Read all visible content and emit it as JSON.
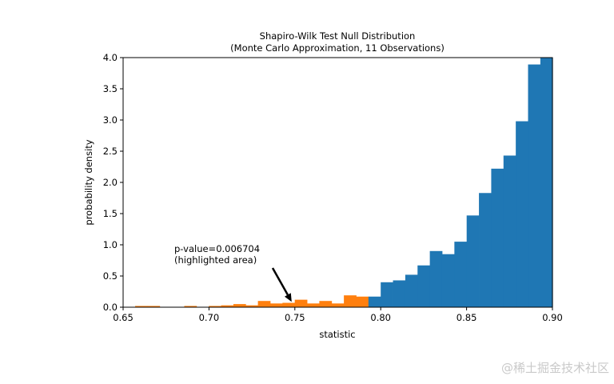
{
  "chart_data": {
    "type": "bar",
    "title": "Shapiro-Wilk Test Null Distribution",
    "subtitle": "(Monte Carlo Approximation, 11 Observations)",
    "xlabel": "statistic",
    "ylabel": "probability density",
    "xlim": [
      0.65,
      0.9
    ],
    "ylim": [
      0,
      4.0
    ],
    "xticks": [
      "0.65",
      "0.70",
      "0.75",
      "0.80",
      "0.85",
      "0.90"
    ],
    "yticks": [
      "0.0",
      "0.5",
      "1.0",
      "1.5",
      "2.0",
      "2.5",
      "3.0",
      "3.5",
      "4.0"
    ],
    "grid": false,
    "bin_start": 0.657,
    "bin_width": 0.00715,
    "highlighted_values": [
      0.02,
      0.02,
      0,
      0,
      0.02,
      0,
      0.02,
      0.03,
      0.05,
      0.03,
      0.1,
      0.06,
      0.07,
      0.12,
      0.06,
      0.1,
      0.06,
      0.19,
      0.17
    ],
    "other_values": [
      0.17,
      0.4,
      0.43,
      0.52,
      0.67,
      0.9,
      0.85,
      1.05,
      1.47,
      1.83,
      2.22,
      2.43,
      2.98,
      3.89,
      4.2
    ],
    "colors": {
      "highlighted": "#ff7f0e",
      "other": "#1f77b4"
    },
    "annotation": {
      "line1": "p-value=0.006704",
      "line2": "(highlighted area)",
      "arrow_target": [
        0.75,
        0.1
      ]
    }
  },
  "watermark": "@稀土掘金技术社区"
}
